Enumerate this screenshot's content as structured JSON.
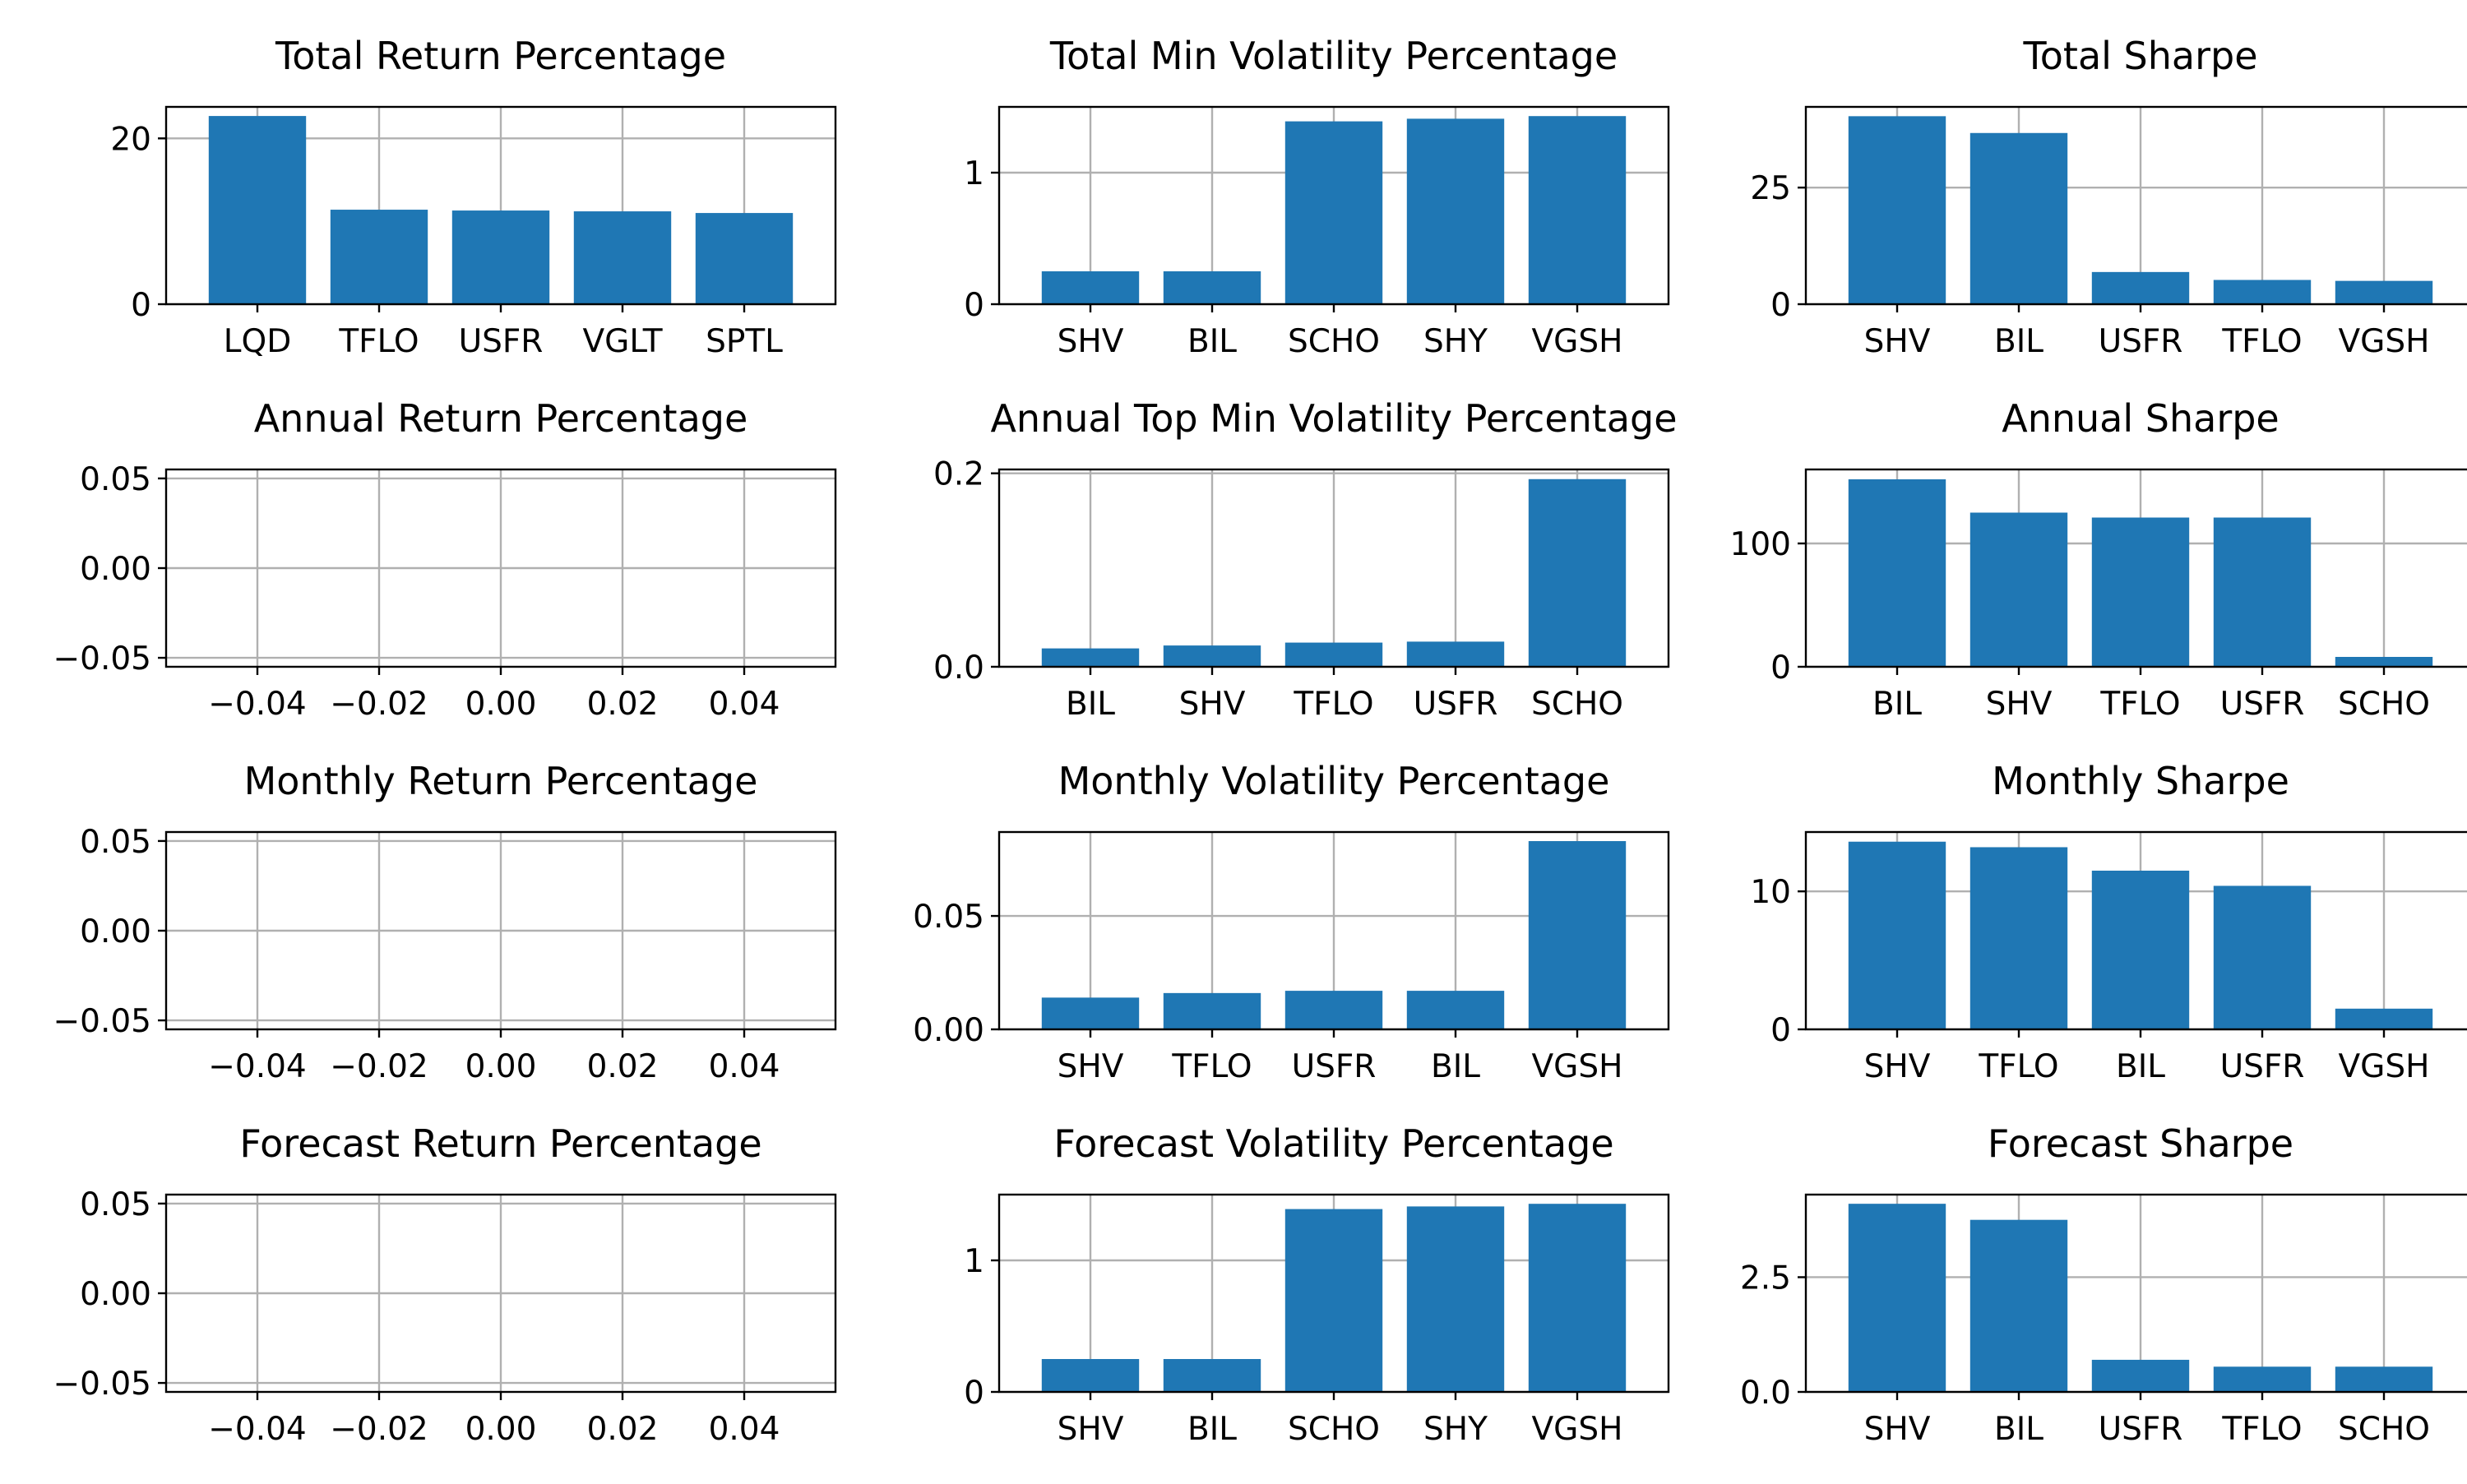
{
  "colors": {
    "bar": "#1f77b4",
    "grid": "#b0b0b0",
    "axis": "#000000",
    "background": "#ffffff"
  },
  "chart_data": [
    {
      "type": "bar",
      "title": "Total Return Percentage",
      "categories": [
        "LQD",
        "TFLO",
        "USFR",
        "VGLT",
        "SPTL"
      ],
      "values": [
        22.7,
        11.4,
        11.3,
        11.2,
        11.0
      ],
      "ylim": [
        0,
        23.8
      ],
      "yticks": [
        0,
        20
      ],
      "ytick_labels": [
        "0",
        "20"
      ],
      "grid": true
    },
    {
      "type": "bar",
      "title": "Total Min Volatility Percentage",
      "categories": [
        "SHV",
        "BIL",
        "SCHO",
        "SHY",
        "VGSH"
      ],
      "values": [
        0.25,
        0.25,
        1.39,
        1.41,
        1.43
      ],
      "ylim": [
        0,
        1.5
      ],
      "yticks": [
        0,
        1
      ],
      "ytick_labels": [
        "0",
        "1"
      ],
      "grid": true
    },
    {
      "type": "bar",
      "title": "Total Sharpe",
      "categories": [
        "SHV",
        "BIL",
        "USFR",
        "TFLO",
        "VGSH"
      ],
      "values": [
        40.3,
        36.7,
        6.9,
        5.2,
        5.0
      ],
      "ylim": [
        0,
        42.3
      ],
      "yticks": [
        0,
        25
      ],
      "ytick_labels": [
        "0",
        "25"
      ],
      "grid": true
    },
    {
      "type": "bar",
      "title": "Annual Return Percentage",
      "categories": [],
      "values": [],
      "xlim": [
        -0.055,
        0.055
      ],
      "ylim": [
        -0.055,
        0.055
      ],
      "xticks": [
        -0.04,
        -0.02,
        0.0,
        0.02,
        0.04
      ],
      "xtick_labels": [
        "−0.04",
        "−0.02",
        "0.00",
        "0.02",
        "0.04"
      ],
      "yticks": [
        -0.05,
        0.0,
        0.05
      ],
      "ytick_labels": [
        "−0.05",
        "0.00",
        "0.05"
      ],
      "grid": true
    },
    {
      "type": "bar",
      "title": "Annual Top Min Volatility Percentage",
      "categories": [
        "BIL",
        "SHV",
        "TFLO",
        "USFR",
        "SCHO"
      ],
      "values": [
        0.019,
        0.022,
        0.025,
        0.026,
        0.194
      ],
      "ylim": [
        0,
        0.204
      ],
      "yticks": [
        0,
        0.2
      ],
      "ytick_labels": [
        "0.0",
        "0.2"
      ],
      "grid": true
    },
    {
      "type": "bar",
      "title": "Annual Sharpe",
      "categories": [
        "BIL",
        "SHV",
        "TFLO",
        "USFR",
        "SCHO"
      ],
      "values": [
        152,
        125,
        121,
        121,
        8
      ],
      "ylim": [
        0,
        160
      ],
      "yticks": [
        0,
        100
      ],
      "ytick_labels": [
        "0",
        "100"
      ],
      "grid": true
    },
    {
      "type": "bar",
      "title": "Monthly Return Percentage",
      "categories": [],
      "values": [],
      "xlim": [
        -0.055,
        0.055
      ],
      "ylim": [
        -0.055,
        0.055
      ],
      "xticks": [
        -0.04,
        -0.02,
        0.0,
        0.02,
        0.04
      ],
      "xtick_labels": [
        "−0.04",
        "−0.02",
        "0.00",
        "0.02",
        "0.04"
      ],
      "yticks": [
        -0.05,
        0.0,
        0.05
      ],
      "ytick_labels": [
        "−0.05",
        "0.00",
        "0.05"
      ],
      "grid": true
    },
    {
      "type": "bar",
      "title": "Monthly Volatility Percentage",
      "categories": [
        "SHV",
        "TFLO",
        "USFR",
        "BIL",
        "VGSH"
      ],
      "values": [
        0.014,
        0.016,
        0.017,
        0.017,
        0.083
      ],
      "ylim": [
        0,
        0.087
      ],
      "yticks": [
        0,
        0.05
      ],
      "ytick_labels": [
        "0.00",
        "0.05"
      ],
      "grid": true
    },
    {
      "type": "bar",
      "title": "Monthly Sharpe",
      "categories": [
        "SHV",
        "TFLO",
        "BIL",
        "USFR",
        "VGSH"
      ],
      "values": [
        13.6,
        13.2,
        11.5,
        10.4,
        1.5
      ],
      "ylim": [
        0,
        14.3
      ],
      "yticks": [
        0,
        10
      ],
      "ytick_labels": [
        "0",
        "10"
      ],
      "grid": true
    },
    {
      "type": "bar",
      "title": "Forecast Return Percentage",
      "categories": [],
      "values": [],
      "xlim": [
        -0.055,
        0.055
      ],
      "ylim": [
        -0.055,
        0.055
      ],
      "xticks": [
        -0.04,
        -0.02,
        0.0,
        0.02,
        0.04
      ],
      "xtick_labels": [
        "−0.04",
        "−0.02",
        "0.00",
        "0.02",
        "0.04"
      ],
      "yticks": [
        -0.05,
        0.0,
        0.05
      ],
      "ytick_labels": [
        "−0.05",
        "0.00",
        "0.05"
      ],
      "grid": true
    },
    {
      "type": "bar",
      "title": "Forecast Volatility Percentage",
      "categories": [
        "SHV",
        "BIL",
        "SCHO",
        "SHY",
        "VGSH"
      ],
      "values": [
        0.25,
        0.25,
        1.39,
        1.41,
        1.43
      ],
      "ylim": [
        0,
        1.5
      ],
      "yticks": [
        0,
        1
      ],
      "ytick_labels": [
        "0",
        "1"
      ],
      "grid": true
    },
    {
      "type": "bar",
      "title": "Forecast Sharpe",
      "categories": [
        "SHV",
        "BIL",
        "USFR",
        "TFLO",
        "SCHO"
      ],
      "values": [
        4.1,
        3.75,
        0.7,
        0.55,
        0.55
      ],
      "ylim": [
        0,
        4.3
      ],
      "yticks": [
        0,
        2.5
      ],
      "ytick_labels": [
        "0.0",
        "2.5"
      ],
      "grid": true
    }
  ]
}
